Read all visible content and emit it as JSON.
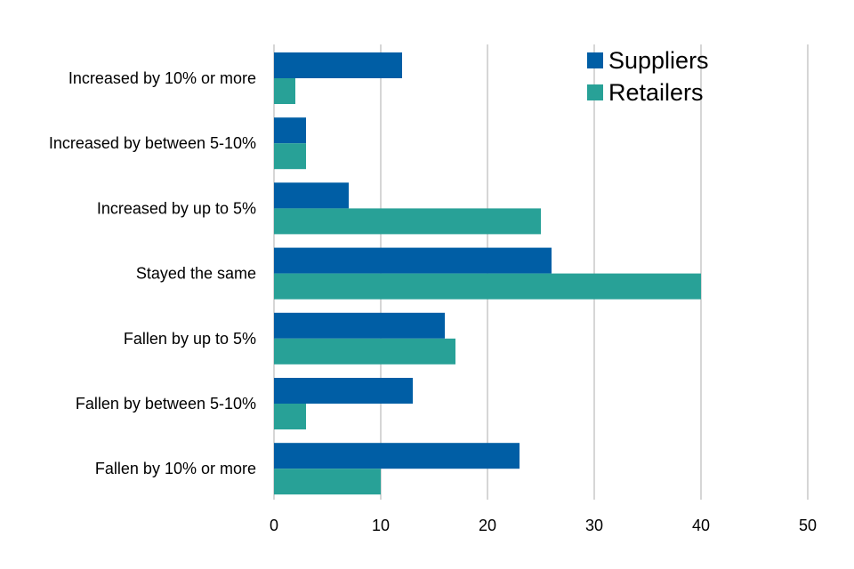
{
  "chart_data": {
    "type": "bar",
    "orientation": "horizontal",
    "categories": [
      "Increased by 10% or more",
      "Increased by between 5-10%",
      "Increased by up to 5%",
      "Stayed the same",
      "Fallen by up to 5%",
      "Fallen by between 5-10%",
      "Fallen by 10% or more"
    ],
    "series": [
      {
        "name": "Suppliers",
        "color": "#005ea5",
        "values": [
          12,
          3,
          7,
          26,
          16,
          13,
          23
        ]
      },
      {
        "name": "Retailers",
        "color": "#28a197",
        "values": [
          2,
          3,
          25,
          40,
          17,
          3,
          10
        ]
      }
    ],
    "xticks": [
      "0",
      "10",
      "20",
      "30",
      "40",
      "50"
    ],
    "xlim": [
      0,
      50
    ],
    "title": "",
    "xlabel": "",
    "ylabel": "",
    "grid": "vertical",
    "legend_position": "top-right"
  }
}
